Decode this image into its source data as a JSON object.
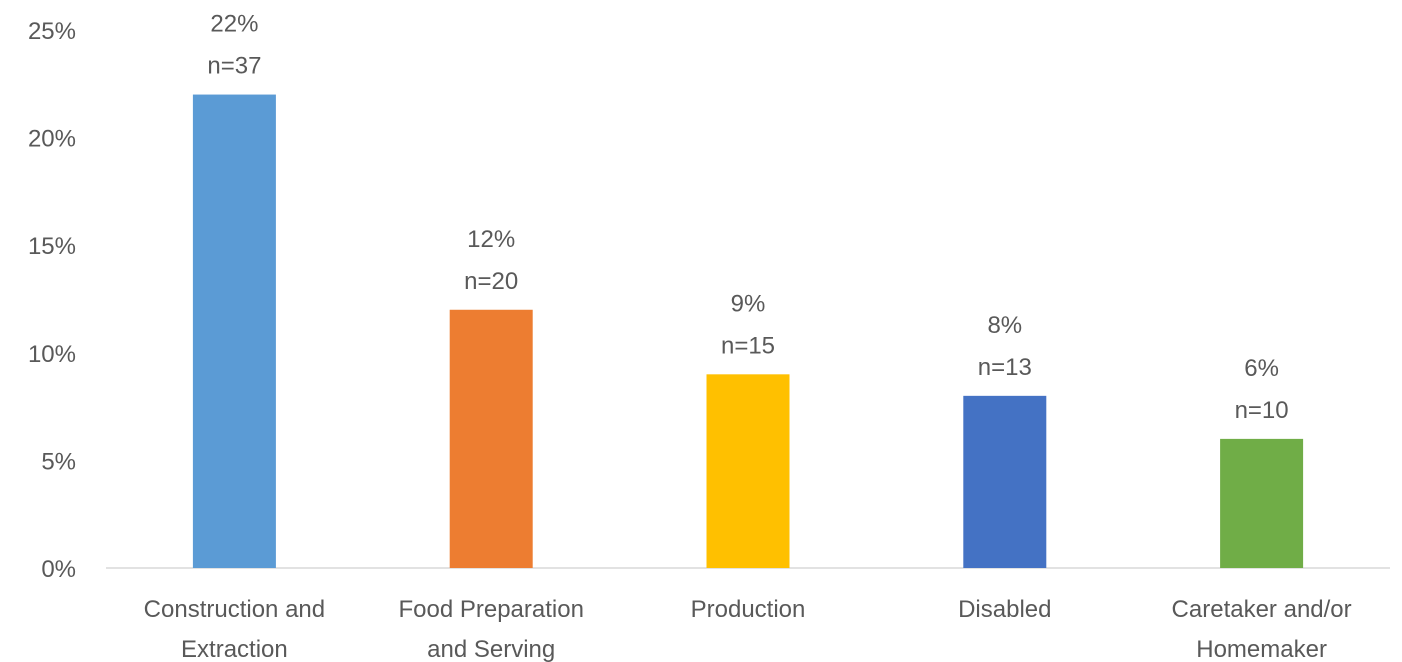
{
  "chart_data": {
    "type": "bar",
    "title": "",
    "xlabel": "",
    "ylabel": "",
    "categories": [
      [
        "Construction and",
        "Extraction"
      ],
      [
        "Food Preparation",
        "and Serving"
      ],
      [
        "Production"
      ],
      [
        "Disabled"
      ],
      [
        "Caretaker and/or",
        "Homemaker"
      ]
    ],
    "values": [
      22,
      12,
      9,
      8,
      6
    ],
    "counts": [
      "n=37",
      "n=20",
      "n=15",
      "n=13",
      "n=10"
    ],
    "value_labels": [
      "22%",
      "12%",
      "9%",
      "8%",
      "6%"
    ],
    "colors": [
      "#5B9BD5",
      "#ED7D31",
      "#FFC000",
      "#4472C4",
      "#70AD47"
    ],
    "ylim": [
      0,
      25
    ],
    "yticks": [
      0,
      5,
      10,
      15,
      20,
      25
    ],
    "ytick_labels": [
      "0%",
      "5%",
      "10%",
      "15%",
      "20%",
      "25%"
    ],
    "grid": false,
    "legend": "none"
  }
}
